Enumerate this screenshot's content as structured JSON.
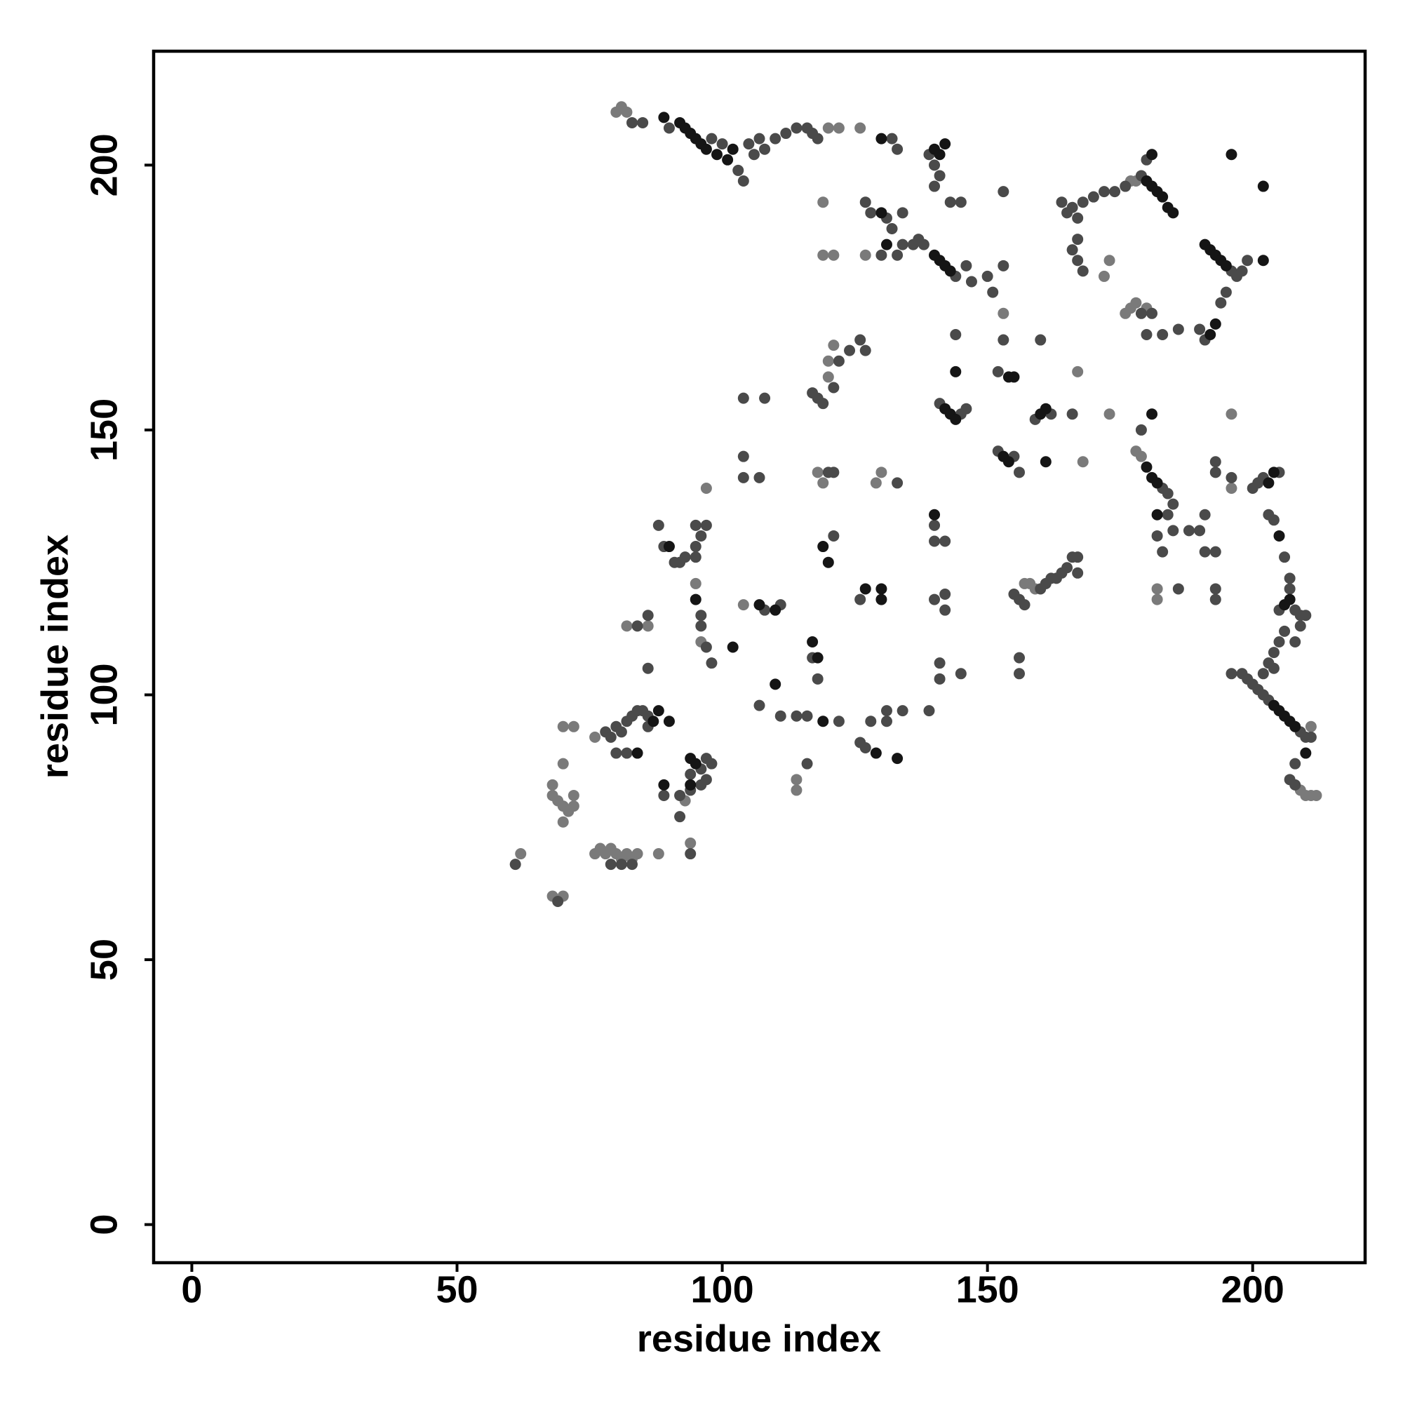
{
  "chart_data": {
    "type": "scatter",
    "x_label": "residue index",
    "y_label": "residue index",
    "xlim": [
      -7.2,
      221.2
    ],
    "ylim": [
      -7.2,
      221.5
    ],
    "xticks": [
      0,
      50,
      100,
      150,
      200
    ],
    "yticks": [
      0,
      50,
      100,
      150,
      200
    ],
    "series": [
      {
        "color": "#7a7a7a",
        "x": [
          68,
          68,
          69,
          70,
          71,
          70,
          72,
          72,
          76,
          77,
          78,
          79,
          80,
          81,
          82,
          83,
          84,
          62,
          68,
          70,
          70,
          70,
          72,
          76,
          80,
          81,
          82,
          120,
          122,
          126,
          119,
          119,
          121,
          127,
          172,
          173,
          176,
          177,
          178,
          180,
          177,
          178,
          120,
          120,
          121,
          118,
          119,
          157,
          158,
          159,
          178,
          179,
          196,
          196,
          211,
          212,
          211,
          210,
          209,
          153,
          167,
          168,
          173,
          182,
          182,
          114,
          114,
          86,
          82,
          97,
          95,
          96,
          104,
          129,
          130,
          88,
          94,
          93
        ],
        "values": [
          83,
          81,
          80,
          79,
          78,
          76,
          79,
          81,
          70,
          71,
          70,
          71,
          70,
          69,
          70,
          69,
          70,
          70,
          62,
          62,
          87,
          94,
          94,
          92,
          210,
          211,
          210,
          207,
          207,
          207,
          193,
          183,
          183,
          183,
          179,
          182,
          172,
          173,
          174,
          173,
          197,
          197,
          160,
          163,
          166,
          142,
          140,
          121,
          121,
          120,
          146,
          145,
          153,
          139,
          94,
          81,
          81,
          81,
          82,
          172,
          161,
          144,
          153,
          120,
          118,
          82,
          84,
          113,
          113,
          139,
          121,
          110,
          117,
          140,
          142,
          70,
          72,
          80
        ]
      },
      {
        "color": "#4a4a4a",
        "x": [
          83,
          85,
          90,
          98,
          100,
          103,
          104,
          105,
          106,
          107,
          108,
          110,
          112,
          114,
          116,
          117,
          118,
          132,
          133,
          139,
          140,
          141,
          140,
          143,
          145,
          153,
          127,
          128,
          131,
          132,
          134,
          130,
          133,
          134,
          136,
          137,
          138,
          144,
          146,
          147,
          150,
          153,
          164,
          165,
          166,
          167,
          168,
          170,
          172,
          174,
          176,
          179,
          180,
          166,
          167,
          168,
          167,
          179,
          181,
          180,
          183,
          186,
          190,
          191,
          194,
          195,
          196,
          197,
          198,
          199,
          117,
          118,
          119,
          121,
          122,
          124,
          126,
          127,
          120,
          121,
          121,
          141,
          145,
          146,
          144,
          152,
          153,
          151,
          159,
          162,
          166,
          160,
          152,
          155,
          156,
          183,
          184,
          185,
          179,
          182,
          183,
          184,
          185,
          188,
          190,
          191,
          191,
          193,
          193,
          193,
          196,
          200,
          201,
          202,
          205,
          203,
          204,
          206,
          186,
          193,
          193,
          196,
          198,
          199,
          200,
          201,
          202,
          203,
          209,
          210,
          211,
          203,
          204,
          205,
          206,
          205,
          208,
          209,
          210,
          209,
          208,
          207,
          207,
          208,
          207,
          208,
          202,
          204,
          155,
          156,
          160,
          161,
          162,
          163,
          164,
          165,
          166,
          167,
          167,
          157,
          156,
          156,
          88,
          89,
          91,
          92,
          93,
          95,
          95,
          95,
          96,
          97,
          96,
          96,
          97,
          98,
          108,
          111,
          104,
          108,
          104,
          104,
          107,
          117,
          118,
          107,
          111,
          114,
          116,
          122,
          116,
          126,
          127,
          128,
          131,
          131,
          134,
          139,
          126,
          133,
          140,
          140,
          142,
          140,
          142,
          142,
          141,
          141,
          145,
          86,
          84,
          86,
          61,
          69,
          78,
          79,
          80,
          81,
          82,
          83,
          84,
          85,
          86,
          80,
          82,
          86,
          79,
          81,
          83,
          89,
          92,
          92,
          94,
          94,
          96,
          97,
          98,
          97,
          96,
          94
        ],
        "values": [
          208,
          208,
          207,
          205,
          204,
          199,
          197,
          204,
          202,
          205,
          203,
          205,
          206,
          207,
          207,
          206,
          205,
          205,
          203,
          202,
          200,
          198,
          196,
          193,
          193,
          195,
          193,
          191,
          190,
          188,
          191,
          183,
          183,
          185,
          185,
          186,
          185,
          179,
          181,
          178,
          179,
          181,
          193,
          191,
          192,
          190,
          193,
          194,
          195,
          195,
          196,
          198,
          201,
          184,
          182,
          180,
          186,
          172,
          172,
          168,
          168,
          169,
          169,
          167,
          174,
          176,
          180,
          179,
          180,
          182,
          157,
          156,
          155,
          158,
          163,
          165,
          167,
          165,
          142,
          142,
          130,
          155,
          153,
          154,
          168,
          161,
          167,
          176,
          152,
          153,
          153,
          167,
          146,
          145,
          142,
          139,
          138,
          136,
          150,
          130,
          127,
          134,
          131,
          131,
          131,
          134,
          127,
          127,
          144,
          142,
          141,
          139,
          140,
          141,
          142,
          134,
          133,
          126,
          120,
          120,
          118,
          104,
          104,
          103,
          102,
          101,
          100,
          99,
          93,
          92,
          92,
          106,
          108,
          110,
          112,
          116,
          116,
          115,
          115,
          113,
          110,
          122,
          120,
          87,
          84,
          83,
          104,
          105,
          119,
          118,
          120,
          121,
          122,
          122,
          123,
          124,
          126,
          126,
          123,
          117,
          107,
          104,
          132,
          128,
          125,
          125,
          126,
          126,
          128,
          132,
          130,
          132,
          115,
          113,
          109,
          106,
          116,
          117,
          156,
          156,
          145,
          141,
          141,
          107,
          103,
          98,
          96,
          96,
          96,
          95,
          87,
          91,
          90,
          95,
          97,
          95,
          97,
          97,
          118,
          140,
          132,
          129,
          129,
          118,
          119,
          116,
          106,
          103,
          104,
          105,
          113,
          115,
          68,
          61,
          93,
          92,
          94,
          93,
          95,
          96,
          97,
          97,
          96,
          89,
          89,
          94,
          68,
          68,
          68,
          81,
          81,
          77,
          82,
          85,
          86,
          88,
          87,
          84,
          83,
          70
        ]
      },
      {
        "color": "#151515",
        "x": [
          89,
          92,
          93,
          94,
          95,
          96,
          97,
          99,
          101,
          102,
          130,
          140,
          141,
          142,
          130,
          131,
          140,
          141,
          142,
          143,
          180,
          181,
          182,
          183,
          184,
          185,
          181,
          196,
          202,
          191,
          192,
          193,
          194,
          195,
          202,
          193,
          192,
          154,
          155,
          144,
          142,
          143,
          144,
          161,
          160,
          153,
          154,
          161,
          180,
          181,
          182,
          181,
          182,
          205,
          203,
          204,
          206,
          207,
          204,
          205,
          206,
          207,
          208,
          210,
          90,
          95,
          102,
          107,
          110,
          117,
          118,
          110,
          119,
          127,
          130,
          130,
          129,
          133,
          140,
          87,
          88,
          90,
          84,
          89,
          94,
          95,
          94,
          119,
          120
        ],
        "values": [
          209,
          208,
          207,
          206,
          205,
          204,
          203,
          202,
          201,
          203,
          205,
          203,
          202,
          204,
          191,
          185,
          183,
          182,
          181,
          180,
          197,
          196,
          195,
          194,
          192,
          191,
          202,
          202,
          196,
          185,
          184,
          183,
          182,
          181,
          182,
          170,
          168,
          160,
          160,
          161,
          154,
          153,
          152,
          154,
          153,
          145,
          144,
          144,
          143,
          141,
          140,
          153,
          134,
          130,
          140,
          142,
          117,
          118,
          98,
          97,
          96,
          95,
          94,
          89,
          128,
          118,
          109,
          117,
          116,
          110,
          107,
          102,
          95,
          120,
          120,
          118,
          89,
          88,
          134,
          95,
          97,
          95,
          89,
          83,
          88,
          87,
          83,
          128,
          125
        ]
      }
    ]
  }
}
